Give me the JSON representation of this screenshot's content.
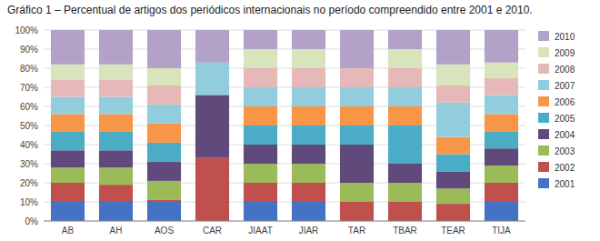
{
  "chart_data": {
    "type": "bar",
    "stacked": true,
    "title": "Gráfico 1 – Percentual de artigos dos periódicos internacionais no período compreendido entre 2001 e 2010.",
    "categories": [
      "AB",
      "AH",
      "AOS",
      "CAR",
      "JIAAT",
      "JIAR",
      "TAR",
      "TBAR",
      "TEAR",
      "TIJA"
    ],
    "series": [
      {
        "name": "2001",
        "color": "#4472C4",
        "values": [
          10,
          10,
          10,
          0,
          10,
          10,
          0,
          0,
          0,
          10
        ]
      },
      {
        "name": "2002",
        "color": "#C0504D",
        "values": [
          10,
          9,
          1,
          33,
          10,
          10,
          10,
          10,
          9,
          10
        ]
      },
      {
        "name": "2003",
        "color": "#9BBB59",
        "values": [
          8,
          9,
          10,
          0,
          10,
          10,
          10,
          10,
          8,
          9
        ]
      },
      {
        "name": "2004",
        "color": "#604A7B",
        "values": [
          9,
          9,
          10,
          33,
          10,
          10,
          20,
          10,
          9,
          9
        ]
      },
      {
        "name": "2005",
        "color": "#4BACC6",
        "values": [
          10,
          10,
          10,
          0,
          10,
          10,
          10,
          20,
          9,
          9
        ]
      },
      {
        "name": "2006",
        "color": "#F79646",
        "values": [
          9,
          9,
          10,
          0,
          10,
          10,
          10,
          10,
          9,
          9
        ]
      },
      {
        "name": "2007",
        "color": "#92CDDD",
        "values": [
          9,
          9,
          10,
          17,
          10,
          10,
          10,
          10,
          18,
          10
        ]
      },
      {
        "name": "2008",
        "color": "#E6B9B8",
        "values": [
          9,
          9,
          10,
          0,
          10,
          10,
          10,
          10,
          9,
          9
        ]
      },
      {
        "name": "2009",
        "color": "#D7E4BC",
        "values": [
          8,
          8,
          9,
          0,
          10,
          10,
          0,
          10,
          11,
          8
        ]
      },
      {
        "name": "2010",
        "color": "#B3A2C7",
        "values": [
          18,
          18,
          20,
          17,
          10,
          10,
          20,
          10,
          18,
          17
        ]
      }
    ],
    "ylim": [
      0,
      100
    ],
    "yticks": [
      {
        "value": 0,
        "label": "0%"
      },
      {
        "value": 10,
        "label": "10%"
      },
      {
        "value": 20,
        "label": "20%"
      },
      {
        "value": 30,
        "label": "30%"
      },
      {
        "value": 40,
        "label": "40%"
      },
      {
        "value": 50,
        "label": "50%"
      },
      {
        "value": 60,
        "label": "60%"
      },
      {
        "value": 70,
        "label": "70%"
      },
      {
        "value": 80,
        "label": "80%"
      },
      {
        "value": 90,
        "label": "90%"
      },
      {
        "value": 100,
        "label": "100%"
      }
    ],
    "grid": true,
    "legend": "right"
  }
}
